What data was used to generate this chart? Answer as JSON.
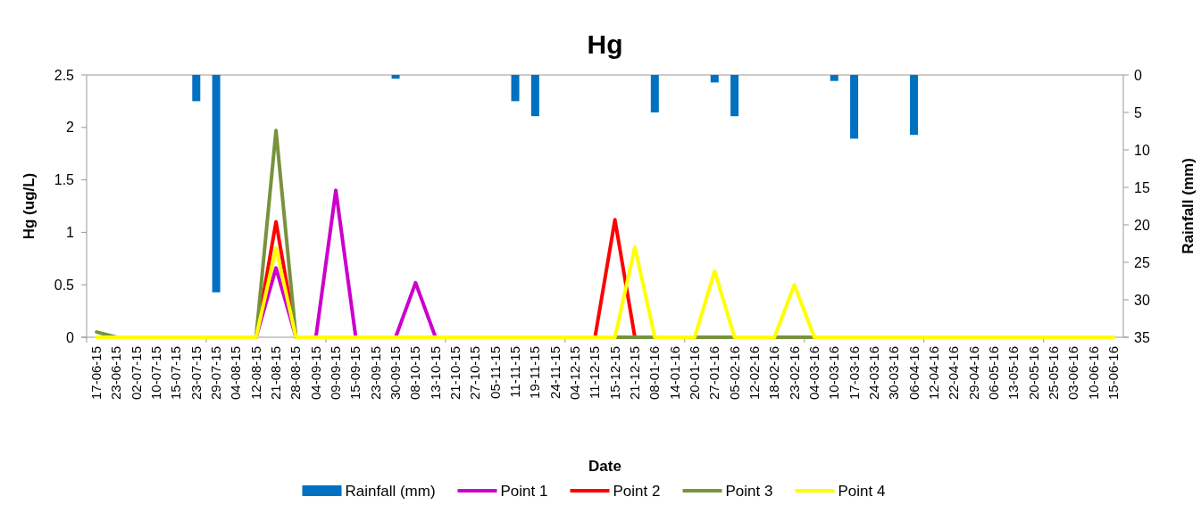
{
  "chart_data": {
    "type": "line",
    "title": "Hg",
    "xlabel": "Date",
    "ylabel": "Hg (ug/L)",
    "y2label": "Rainfall (mm)",
    "categories": [
      "17-06-15",
      "23-06-15",
      "02-07-15",
      "10-07-15",
      "15-07-15",
      "23-07-15",
      "29-07-15",
      "04-08-15",
      "12-08-15",
      "21-08-15",
      "28-08-15",
      "04-09-15",
      "09-09-15",
      "15-09-15",
      "23-09-15",
      "30-09-15",
      "08-10-15",
      "13-10-15",
      "21-10-15",
      "27-10-15",
      "05-11-15",
      "11-11-15",
      "19-11-15",
      "24-11-15",
      "04-12-15",
      "11-12-15",
      "15-12-15",
      "21-12-15",
      "08-01-16",
      "14-01-16",
      "20-01-16",
      "27-01-16",
      "05-02-16",
      "12-02-16",
      "18-02-16",
      "23-02-16",
      "04-03-16",
      "10-03-16",
      "17-03-16",
      "24-03-16",
      "30-03-16",
      "06-04-16",
      "12-04-16",
      "22-04-16",
      "29-04-16",
      "06-05-16",
      "13-05-16",
      "20-05-16",
      "25-05-16",
      "03-06-16",
      "10-06-16",
      "15-06-16"
    ],
    "ylim": [
      0,
      2.5
    ],
    "yticks": [
      0,
      0.5,
      1,
      1.5,
      2,
      2.5
    ],
    "y2lim": [
      35,
      0
    ],
    "y2ticks": [
      0,
      5,
      10,
      15,
      20,
      25,
      30,
      35
    ],
    "legend": "bottom",
    "grid": false,
    "marker": "none",
    "line_style": "solid",
    "series": [
      {
        "name": "Rainfall (mm)",
        "type": "bar",
        "axis": "y2",
        "color": "#0070c0",
        "values": [
          0,
          0,
          0,
          0,
          0,
          3.5,
          29,
          0,
          0,
          0,
          0,
          0,
          0,
          0,
          0,
          0.5,
          0,
          0,
          0,
          0,
          0,
          3.5,
          5.5,
          0,
          0,
          0,
          0,
          0,
          5,
          0,
          0,
          1,
          5.5,
          0,
          0,
          0,
          0,
          0.8,
          8.5,
          0,
          0,
          8,
          0,
          0,
          0,
          0,
          0,
          0,
          0,
          0,
          0,
          0
        ]
      },
      {
        "name": "Point 1",
        "color": "#cc00cc",
        "values": [
          null,
          null,
          null,
          null,
          null,
          null,
          null,
          null,
          0,
          0.66,
          0,
          0,
          1.4,
          0,
          null,
          0,
          0.52,
          0,
          null,
          null,
          null,
          null,
          null,
          null,
          null,
          null,
          null,
          null,
          null,
          null,
          null,
          null,
          null,
          null,
          null,
          null,
          null,
          null,
          null,
          null,
          null,
          null,
          null,
          null,
          null,
          null,
          null,
          null,
          null,
          null,
          null,
          null
        ]
      },
      {
        "name": "Point 2",
        "color": "#ff0000",
        "values": [
          null,
          null,
          null,
          null,
          null,
          null,
          null,
          null,
          0,
          1.1,
          0,
          null,
          null,
          null,
          null,
          null,
          null,
          null,
          null,
          null,
          null,
          null,
          null,
          null,
          null,
          0,
          1.12,
          0,
          null,
          null,
          null,
          null,
          null,
          null,
          null,
          null,
          null,
          null,
          null,
          null,
          null,
          null,
          null,
          null,
          null,
          null,
          null,
          null,
          null,
          null,
          null,
          null
        ]
      },
      {
        "name": "Point 3",
        "color": "#77933c",
        "values": [
          0.05,
          0,
          null,
          null,
          null,
          null,
          null,
          null,
          0,
          1.97,
          0,
          null,
          null,
          null,
          null,
          null,
          null,
          null,
          null,
          null,
          null,
          null,
          null,
          null,
          null,
          null,
          0,
          0,
          0,
          null,
          0,
          0,
          0,
          null,
          0,
          0,
          0,
          null,
          null,
          null,
          null,
          null,
          null,
          null,
          null,
          null,
          null,
          null,
          null,
          null,
          null,
          null
        ]
      },
      {
        "name": "Point 4",
        "color": "#ffff00",
        "values": [
          0,
          0,
          0,
          0,
          0,
          0,
          0,
          0,
          0,
          0.85,
          0,
          0,
          0,
          0,
          0,
          0,
          0,
          0,
          0,
          0,
          0,
          0,
          0,
          0,
          0,
          0,
          0,
          0.86,
          0,
          0,
          0,
          0.63,
          0,
          0,
          0,
          0.5,
          0,
          0,
          0,
          0,
          0,
          0,
          0,
          0,
          0,
          0,
          0,
          0,
          0,
          0,
          0,
          0
        ]
      }
    ]
  }
}
